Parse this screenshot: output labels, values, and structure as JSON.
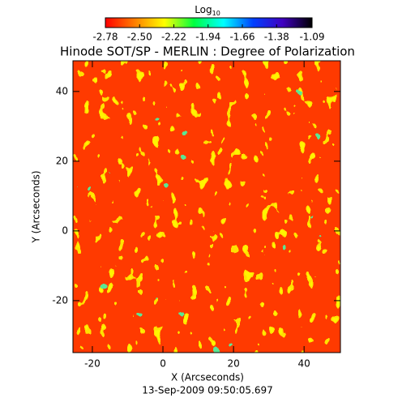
{
  "chart_data": {
    "type": "heatmap",
    "title": "Hinode SOT/SP - MERLIN : Degree of Polarization",
    "colorbar_label": "Log",
    "colorbar_label_subscript": "10",
    "colormap": [
      "#ff0000",
      "#ff7f00",
      "#ffff00",
      "#00ff40",
      "#00ffff",
      "#0040ff",
      "#4000c0",
      "#000000"
    ],
    "colorbar_lim": [
      -2.78,
      -1.09
    ],
    "colorbar_ticks": [
      {
        "value": -2.78,
        "label": "-2.78"
      },
      {
        "value": -2.5,
        "label": "-2.50"
      },
      {
        "value": -2.22,
        "label": "-2.22"
      },
      {
        "value": -1.94,
        "label": "-1.94"
      },
      {
        "value": -1.66,
        "label": "-1.66"
      },
      {
        "value": -1.38,
        "label": "-1.38"
      },
      {
        "value": -1.09,
        "label": "-1.09"
      }
    ],
    "x_label": "X (Arcseconds)",
    "y_label": "Y (Arcseconds)",
    "xlim": [
      -25.5,
      50.3
    ],
    "ylim": [
      -34.9,
      48.8
    ],
    "xticks": [
      -20,
      0,
      20,
      40
    ],
    "yticks": [
      -20,
      0,
      20,
      40
    ],
    "footer": "13-Sep-2009 09:50:05.697"
  }
}
